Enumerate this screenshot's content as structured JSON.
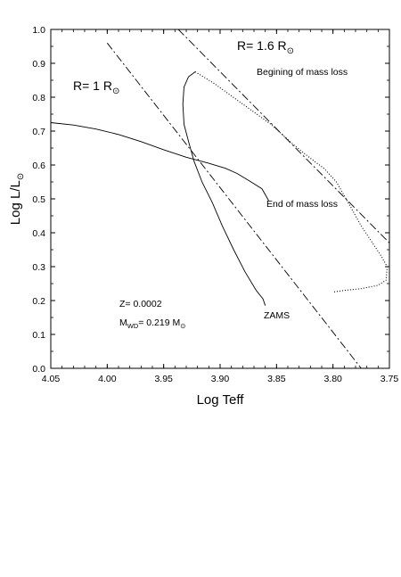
{
  "chart_data": {
    "type": "line",
    "xlabel": "Log Teff",
    "ylabel_main": "Log L/L",
    "ylabel_sub": "⊙",
    "x_axis_reversed": true,
    "xlim": [
      4.05,
      3.75
    ],
    "ylim": [
      0.0,
      1.0
    ],
    "grid": false,
    "xticks": [
      4.05,
      4.0,
      3.95,
      3.9,
      3.85,
      3.8,
      3.75
    ],
    "xtick_labels": [
      "4.05",
      "4.00",
      "3.95",
      "3.90",
      "3.85",
      "3.80",
      "3.75"
    ],
    "yticks": [
      0.0,
      0.1,
      0.2,
      0.3,
      0.4,
      0.5,
      0.6,
      0.7,
      0.8,
      0.9,
      1.0
    ],
    "ytick_labels": [
      "0.0",
      "0.1",
      "0.2",
      "0.3",
      "0.4",
      "0.5",
      "0.6",
      "0.7",
      "0.8",
      "0.9",
      "1.0"
    ],
    "series": [
      {
        "style": "solid",
        "points": [
          [
            4.05,
            0.725
          ],
          [
            4.03,
            0.718
          ],
          [
            4.01,
            0.706
          ],
          [
            3.99,
            0.69
          ],
          [
            3.97,
            0.669
          ],
          [
            3.95,
            0.645
          ],
          [
            3.93,
            0.623
          ],
          [
            3.91,
            0.605
          ],
          [
            3.895,
            0.59
          ],
          [
            3.885,
            0.575
          ],
          [
            3.875,
            0.555
          ],
          [
            3.863,
            0.53
          ],
          [
            3.857,
            0.495
          ]
        ]
      },
      {
        "style": "solid",
        "points": [
          [
            3.922,
            0.875
          ],
          [
            3.928,
            0.86
          ],
          [
            3.932,
            0.83
          ],
          [
            3.933,
            0.78
          ],
          [
            3.932,
            0.72
          ],
          [
            3.928,
            0.67
          ],
          [
            3.923,
            0.61
          ],
          [
            3.916,
            0.55
          ],
          [
            3.907,
            0.49
          ],
          [
            3.898,
            0.42
          ],
          [
            3.888,
            0.35
          ],
          [
            3.878,
            0.285
          ],
          [
            3.868,
            0.23
          ],
          [
            3.862,
            0.205
          ],
          [
            3.86,
            0.185
          ]
        ]
      },
      {
        "style": "dotted",
        "points": [
          [
            3.922,
            0.875
          ],
          [
            3.905,
            0.84
          ],
          [
            3.88,
            0.78
          ],
          [
            3.855,
            0.72
          ],
          [
            3.835,
            0.66
          ],
          [
            3.822,
            0.625
          ],
          [
            3.808,
            0.59
          ],
          [
            3.797,
            0.55
          ],
          [
            3.785,
            0.48
          ],
          [
            3.775,
            0.42
          ],
          [
            3.765,
            0.37
          ],
          [
            3.757,
            0.33
          ],
          [
            3.752,
            0.3
          ],
          [
            3.753,
            0.26
          ],
          [
            3.76,
            0.245
          ],
          [
            3.775,
            0.235
          ],
          [
            3.79,
            0.23
          ],
          [
            3.8,
            0.225
          ]
        ]
      },
      {
        "style": "dashdot",
        "name": "R= 1 R⊙",
        "points": [
          [
            4.0,
            0.96
          ],
          [
            3.775,
            0.0
          ]
        ]
      },
      {
        "style": "dashdot",
        "name": "R= 1.6 R⊙",
        "points": [
          [
            3.937,
            1.0
          ],
          [
            3.75,
            0.37
          ]
        ]
      }
    ],
    "annotations": {
      "r1_main": "R= 1 R",
      "r1_sub": "⊙",
      "r16_main": "R= 1.6 R",
      "r16_sub": "⊙",
      "begin_mass_loss": "Begining of mass loss",
      "end_mass_loss": "End of mass loss",
      "zams": "ZAMS",
      "z": "Z= 0.0002",
      "mwd_main": "M",
      "mwd_sub": "WD",
      "mwd_value": "= 0.219 M",
      "mwd_unit_sub": "⊙"
    }
  }
}
